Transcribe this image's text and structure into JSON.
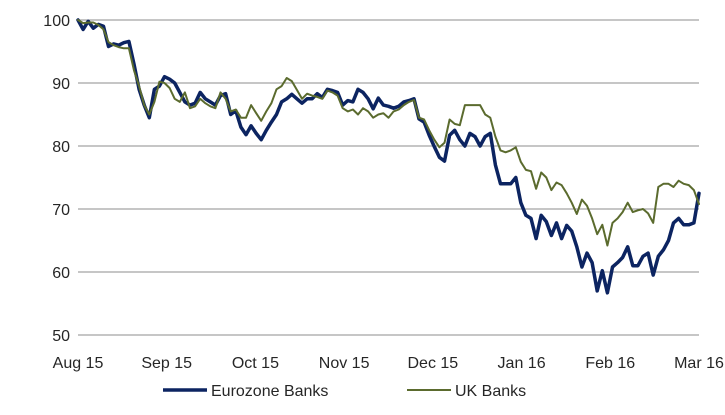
{
  "chart_data": {
    "type": "line",
    "title": "",
    "xlabel": "",
    "ylabel": "",
    "ylim": [
      50,
      100
    ],
    "yticks": [
      50,
      60,
      70,
      80,
      90,
      100
    ],
    "x_tick_labels": [
      "Aug 15",
      "Sep 15",
      "Oct 15",
      "Nov 15",
      "Dec 15",
      "Jan 16",
      "Feb 16",
      "Mar 16"
    ],
    "grid": true,
    "legend_position": "bottom",
    "series": [
      {
        "name": "Eurozone Banks",
        "color": "#0c2461",
        "values": [
          100.0,
          98.5,
          99.8,
          98.7,
          99.3,
          99.0,
          95.8,
          96.2,
          96.0,
          96.4,
          96.6,
          93.0,
          89.0,
          86.5,
          84.5,
          89.0,
          89.5,
          91.0,
          90.6,
          90.0,
          88.5,
          87.0,
          86.5,
          86.8,
          88.5,
          87.5,
          87.0,
          86.5,
          88.0,
          88.3,
          85.0,
          85.6,
          83.0,
          81.8,
          83.2,
          82.0,
          81.0,
          82.5,
          83.8,
          85.0,
          87.0,
          87.5,
          88.2,
          87.5,
          86.8,
          87.5,
          87.5,
          88.3,
          87.7,
          89.0,
          88.8,
          88.5,
          86.5,
          87.2,
          87.0,
          89.0,
          88.5,
          87.5,
          85.9,
          87.6,
          86.5,
          86.3,
          86.0,
          86.3,
          87.0,
          87.2,
          87.5,
          84.3,
          83.8,
          81.7,
          79.9,
          78.2,
          77.6,
          81.7,
          82.5,
          81.0,
          80.0,
          82.0,
          81.5,
          80.0,
          81.5,
          82.0,
          77.0,
          74.0,
          74.0,
          74.0,
          75.0,
          71.0,
          69.0,
          68.5,
          65.3,
          69.0,
          68.0,
          65.8,
          67.8,
          65.3,
          67.4,
          66.5,
          64.0,
          60.8,
          63.0,
          61.5,
          57.0,
          60.2,
          56.7,
          60.8,
          61.5,
          62.3,
          64.0,
          61.0,
          61.0,
          62.5,
          63.0,
          59.5,
          62.5,
          63.5,
          65.0,
          67.8,
          68.5,
          67.5,
          67.5,
          67.8,
          72.5
        ]
      },
      {
        "name": "UK Banks",
        "color": "#5b6b2e",
        "values": [
          100.0,
          99.5,
          99.6,
          99.6,
          99.2,
          98.5,
          96.5,
          96.0,
          95.7,
          95.5,
          95.5,
          92.0,
          89.5,
          86.5,
          85.0,
          87.0,
          90.2,
          90.0,
          89.2,
          87.5,
          87.0,
          88.5,
          86.0,
          86.3,
          87.5,
          86.8,
          86.3,
          86.0,
          88.5,
          87.5,
          85.5,
          85.8,
          84.5,
          84.5,
          86.5,
          85.2,
          84.0,
          85.5,
          86.8,
          89.0,
          89.5,
          90.8,
          90.3,
          88.9,
          87.5,
          88.3,
          88.0,
          87.8,
          87.5,
          88.8,
          88.5,
          88.0,
          86.0,
          85.5,
          85.8,
          85.0,
          86.0,
          85.5,
          84.5,
          85.0,
          85.2,
          84.5,
          85.5,
          85.8,
          86.5,
          87.0,
          87.3,
          84.5,
          84.2,
          82.5,
          81.0,
          79.8,
          80.5,
          84.2,
          83.5,
          83.3,
          86.5,
          86.5,
          86.5,
          86.5,
          85.0,
          84.5,
          81.5,
          79.3,
          79.0,
          79.3,
          79.8,
          77.5,
          76.2,
          76.0,
          73.2,
          75.8,
          75.0,
          73.0,
          74.2,
          73.8,
          72.5,
          71.0,
          69.2,
          71.5,
          70.5,
          68.5,
          66.0,
          67.5,
          64.2,
          67.8,
          68.5,
          69.5,
          71.0,
          69.5,
          69.8,
          70.0,
          69.3,
          67.8,
          73.5,
          74.0,
          74.0,
          73.5,
          74.5,
          74.0,
          73.8,
          73.0,
          70.8
        ]
      }
    ]
  }
}
